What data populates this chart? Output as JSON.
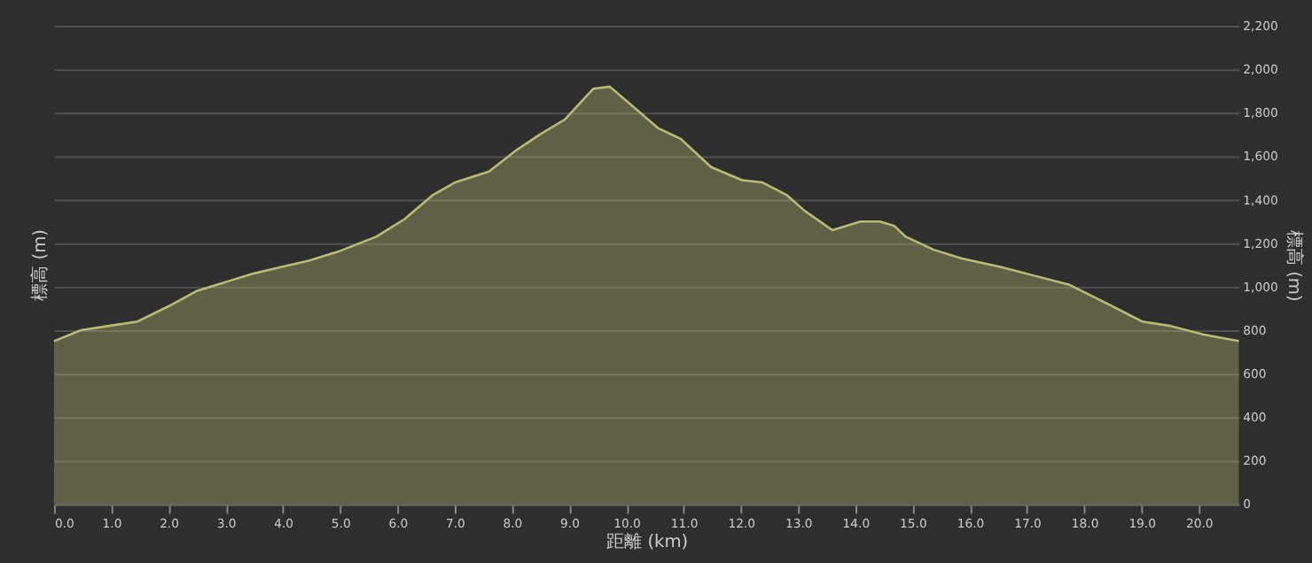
{
  "chart_data": {
    "type": "area",
    "xlabel": "距離 (km)",
    "ylabel": "標高 (m)",
    "y2label": "標高 (m)",
    "x": [
      0,
      0.47,
      0.96,
      1.46,
      2.0,
      2.49,
      2.98,
      3.47,
      3.96,
      4.45,
      4.95,
      5.63,
      6.12,
      6.61,
      7.01,
      7.6,
      8.09,
      8.49,
      8.93,
      9.42,
      9.71,
      10.11,
      10.55,
      10.95,
      11.48,
      12.02,
      12.37,
      12.81,
      13.11,
      13.6,
      14.09,
      14.43,
      14.68,
      14.88,
      15.37,
      15.86,
      16.55,
      17.14,
      17.73,
      18.42,
      19.01,
      19.5,
      20.09,
      20.7
    ],
    "series": [
      {
        "color": "#b9bd73",
        "values": [
          750,
          800,
          820,
          840,
          910,
          980,
          1020,
          1060,
          1090,
          1120,
          1160,
          1230,
          1310,
          1420,
          1480,
          1530,
          1630,
          1700,
          1770,
          1910,
          1920,
          1830,
          1730,
          1680,
          1550,
          1490,
          1480,
          1420,
          1350,
          1260,
          1300,
          1300,
          1280,
          1230,
          1170,
          1130,
          1090,
          1050,
          1010,
          920,
          840,
          820,
          780,
          750
        ]
      }
    ],
    "xlim": [
      0,
      20.7
    ],
    "xticks": [
      {
        "value": 0,
        "label": "0.0"
      },
      {
        "value": 1,
        "label": "1.0"
      },
      {
        "value": 2,
        "label": "2.0"
      },
      {
        "value": 3,
        "label": "3.0"
      },
      {
        "value": 4,
        "label": "4.0"
      },
      {
        "value": 5,
        "label": "5.0"
      },
      {
        "value": 6,
        "label": "6.0"
      },
      {
        "value": 7,
        "label": "7.0"
      },
      {
        "value": 8,
        "label": "8.0"
      },
      {
        "value": 9,
        "label": "9.0"
      },
      {
        "value": 10,
        "label": "10.0"
      },
      {
        "value": 11,
        "label": "11.0"
      },
      {
        "value": 12,
        "label": "12.0"
      },
      {
        "value": 13,
        "label": "13.0"
      },
      {
        "value": 14,
        "label": "14.0"
      },
      {
        "value": 15,
        "label": "15.0"
      },
      {
        "value": 16,
        "label": "16.0"
      },
      {
        "value": 17,
        "label": "17.0"
      },
      {
        "value": 18,
        "label": "18.0"
      },
      {
        "value": 19,
        "label": "19.0"
      },
      {
        "value": 20,
        "label": "20.0"
      }
    ],
    "ylim": [
      0,
      2200
    ],
    "yticks": [
      0,
      200,
      400,
      600,
      800,
      {
        "value": 1000,
        "label": "1,000"
      },
      {
        "value": 1200,
        "label": "1,200"
      },
      {
        "value": 1400,
        "label": "1,400"
      },
      {
        "value": 1600,
        "label": "1,600"
      },
      {
        "value": 1800,
        "label": "1,800"
      },
      {
        "value": 2000,
        "label": "2,000"
      },
      {
        "value": 2200,
        "label": "2,200"
      }
    ],
    "grid": "y",
    "marker": "none",
    "line_style": "solid"
  }
}
